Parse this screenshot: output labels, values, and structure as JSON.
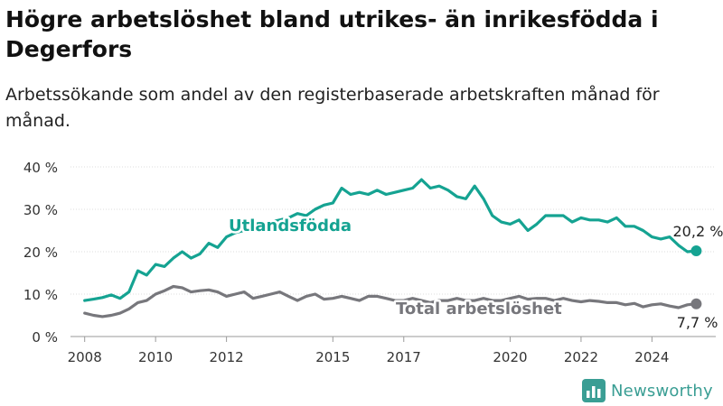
{
  "header": {
    "title": "Högre arbetslöshet bland utrikes- än inrikesfödda i Degerfors",
    "subtitle": "Arbetssökande som andel av den registerbaserade arbetskraften månad för månad."
  },
  "brand": {
    "name": "Newsworthy",
    "color": "#3a9e94",
    "icon": "bar-chart-logo-icon"
  },
  "chart_data": {
    "type": "line",
    "ylim": [
      0,
      40
    ],
    "xlim": [
      2007.6,
      2025.8
    ],
    "y_ticks": [
      0,
      10,
      20,
      30,
      40
    ],
    "y_tick_labels": [
      "0 %",
      "10 %",
      "20 %",
      "30 %",
      "40 %"
    ],
    "x_ticks": [
      2008,
      2010,
      2012,
      2015,
      2017,
      2020,
      2022,
      2024
    ],
    "x_tick_labels": [
      "2008",
      "2010",
      "2012",
      "2015",
      "2017",
      "2020",
      "2022",
      "2024"
    ],
    "grid": true,
    "series": [
      {
        "name": "Utlandsfödda",
        "color": "#15a392",
        "end_label": "20,2 %",
        "points": [
          [
            2008.0,
            8.5
          ],
          [
            2008.25,
            8.8
          ],
          [
            2008.5,
            9.2
          ],
          [
            2008.75,
            9.8
          ],
          [
            2009.0,
            9.0
          ],
          [
            2009.25,
            10.5
          ],
          [
            2009.5,
            15.5
          ],
          [
            2009.75,
            14.5
          ],
          [
            2010.0,
            17.0
          ],
          [
            2010.25,
            16.5
          ],
          [
            2010.5,
            18.5
          ],
          [
            2010.75,
            20.0
          ],
          [
            2011.0,
            18.5
          ],
          [
            2011.25,
            19.5
          ],
          [
            2011.5,
            22.0
          ],
          [
            2011.75,
            21.0
          ],
          [
            2012.0,
            23.5
          ],
          [
            2012.25,
            24.5
          ],
          [
            2012.5,
            25.0
          ],
          [
            2012.75,
            25.0
          ],
          [
            2013.0,
            26.5
          ],
          [
            2013.25,
            27.0
          ],
          [
            2013.5,
            27.5
          ],
          [
            2013.75,
            28.0
          ],
          [
            2014.0,
            29.0
          ],
          [
            2014.25,
            28.5
          ],
          [
            2014.5,
            30.0
          ],
          [
            2014.75,
            31.0
          ],
          [
            2015.0,
            31.5
          ],
          [
            2015.25,
            35.0
          ],
          [
            2015.5,
            33.5
          ],
          [
            2015.75,
            34.0
          ],
          [
            2016.0,
            33.5
          ],
          [
            2016.25,
            34.5
          ],
          [
            2016.5,
            33.5
          ],
          [
            2016.75,
            34.0
          ],
          [
            2017.0,
            34.5
          ],
          [
            2017.25,
            35.0
          ],
          [
            2017.5,
            37.0
          ],
          [
            2017.75,
            35.0
          ],
          [
            2018.0,
            35.5
          ],
          [
            2018.25,
            34.5
          ],
          [
            2018.5,
            33.0
          ],
          [
            2018.75,
            32.5
          ],
          [
            2019.0,
            35.5
          ],
          [
            2019.25,
            32.5
          ],
          [
            2019.5,
            28.5
          ],
          [
            2019.75,
            27.0
          ],
          [
            2020.0,
            26.5
          ],
          [
            2020.25,
            27.5
          ],
          [
            2020.5,
            25.0
          ],
          [
            2020.75,
            26.5
          ],
          [
            2021.0,
            28.5
          ],
          [
            2021.25,
            28.5
          ],
          [
            2021.5,
            28.5
          ],
          [
            2021.75,
            27.0
          ],
          [
            2022.0,
            28.0
          ],
          [
            2022.25,
            27.5
          ],
          [
            2022.5,
            27.5
          ],
          [
            2022.75,
            27.0
          ],
          [
            2023.0,
            28.0
          ],
          [
            2023.25,
            26.0
          ],
          [
            2023.5,
            26.0
          ],
          [
            2023.75,
            25.0
          ],
          [
            2024.0,
            23.5
          ],
          [
            2024.25,
            23.0
          ],
          [
            2024.5,
            23.5
          ],
          [
            2024.75,
            21.5
          ],
          [
            2025.0,
            20.0
          ],
          [
            2025.25,
            20.2
          ]
        ]
      },
      {
        "name": "Total arbetslöshet",
        "color": "#77777c",
        "end_label": "7,7 %",
        "points": [
          [
            2008.0,
            5.5
          ],
          [
            2008.25,
            5.0
          ],
          [
            2008.5,
            4.7
          ],
          [
            2008.75,
            5.0
          ],
          [
            2009.0,
            5.5
          ],
          [
            2009.25,
            6.5
          ],
          [
            2009.5,
            8.0
          ],
          [
            2009.75,
            8.5
          ],
          [
            2010.0,
            10.0
          ],
          [
            2010.25,
            10.8
          ],
          [
            2010.5,
            11.8
          ],
          [
            2010.75,
            11.5
          ],
          [
            2011.0,
            10.5
          ],
          [
            2011.25,
            10.8
          ],
          [
            2011.5,
            11.0
          ],
          [
            2011.75,
            10.5
          ],
          [
            2012.0,
            9.5
          ],
          [
            2012.25,
            10.0
          ],
          [
            2012.5,
            10.5
          ],
          [
            2012.75,
            9.0
          ],
          [
            2013.0,
            9.5
          ],
          [
            2013.25,
            10.0
          ],
          [
            2013.5,
            10.5
          ],
          [
            2013.75,
            9.5
          ],
          [
            2014.0,
            8.5
          ],
          [
            2014.25,
            9.5
          ],
          [
            2014.5,
            10.0
          ],
          [
            2014.75,
            8.8
          ],
          [
            2015.0,
            9.0
          ],
          [
            2015.25,
            9.5
          ],
          [
            2015.5,
            9.0
          ],
          [
            2015.75,
            8.5
          ],
          [
            2016.0,
            9.5
          ],
          [
            2016.25,
            9.5
          ],
          [
            2016.5,
            9.0
          ],
          [
            2016.75,
            8.5
          ],
          [
            2017.0,
            8.5
          ],
          [
            2017.25,
            9.0
          ],
          [
            2017.5,
            8.5
          ],
          [
            2017.75,
            8.0
          ],
          [
            2018.0,
            8.5
          ],
          [
            2018.25,
            8.5
          ],
          [
            2018.5,
            9.0
          ],
          [
            2018.75,
            8.5
          ],
          [
            2019.0,
            8.5
          ],
          [
            2019.25,
            9.0
          ],
          [
            2019.5,
            8.5
          ],
          [
            2019.75,
            8.5
          ],
          [
            2020.0,
            9.0
          ],
          [
            2020.25,
            9.5
          ],
          [
            2020.5,
            8.8
          ],
          [
            2020.75,
            9.0
          ],
          [
            2021.0,
            9.0
          ],
          [
            2021.25,
            8.5
          ],
          [
            2021.5,
            9.0
          ],
          [
            2021.75,
            8.5
          ],
          [
            2022.0,
            8.2
          ],
          [
            2022.25,
            8.5
          ],
          [
            2022.5,
            8.3
          ],
          [
            2022.75,
            8.0
          ],
          [
            2023.0,
            8.0
          ],
          [
            2023.25,
            7.5
          ],
          [
            2023.5,
            7.8
          ],
          [
            2023.75,
            7.0
          ],
          [
            2024.0,
            7.5
          ],
          [
            2024.25,
            7.7
          ],
          [
            2024.5,
            7.2
          ],
          [
            2024.75,
            6.8
          ],
          [
            2025.0,
            7.5
          ],
          [
            2025.25,
            7.7
          ]
        ]
      }
    ],
    "annotations": {
      "utl_label": "Utlandsfödda",
      "total_label": "Total arbetslöshet"
    }
  }
}
